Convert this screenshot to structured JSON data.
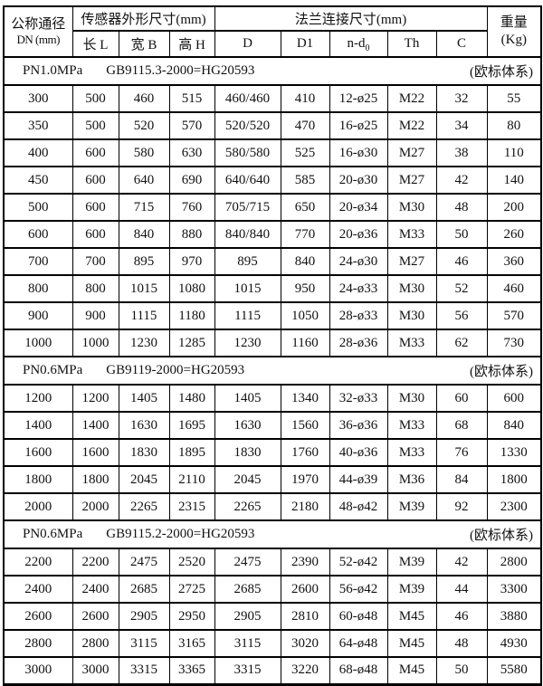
{
  "header": {
    "dn_title": "公称通径",
    "dn_sub": "DN (mm)",
    "sensor_group": "传感器外形尺寸(mm)",
    "flange_group": "法兰连接尺寸(mm)",
    "weight_line1": "重量",
    "weight_line2": "(Kg)",
    "sub_cols": [
      "长 L",
      "宽 B",
      "高 H",
      "D",
      "D1",
      "",
      "Th",
      "C"
    ],
    "nd_main": "n-d",
    "nd_sub": "0"
  },
  "columns_semantic": [
    "DN",
    "L",
    "B",
    "H",
    "D",
    "D1",
    "n-d0",
    "Th",
    "C",
    "Weight"
  ],
  "sections": [
    {
      "pressure": "PN1.0MPa",
      "standard": "GB9115.3-2000=HG20593",
      "note": "(欧标体系)",
      "rows": [
        [
          "300",
          "500",
          "460",
          "515",
          "460/460",
          "410",
          "12-ø25",
          "M22",
          "32",
          "55"
        ],
        [
          "350",
          "500",
          "520",
          "570",
          "520/520",
          "470",
          "16-ø25",
          "M22",
          "34",
          "80"
        ],
        [
          "400",
          "600",
          "580",
          "630",
          "580/580",
          "525",
          "16-ø30",
          "M27",
          "38",
          "110"
        ],
        [
          "450",
          "600",
          "640",
          "690",
          "640/640",
          "585",
          "20-ø30",
          "M27",
          "42",
          "140"
        ],
        [
          "500",
          "600",
          "715",
          "760",
          "705/715",
          "650",
          "20-ø34",
          "M30",
          "48",
          "200"
        ],
        [
          "600",
          "600",
          "840",
          "880",
          "840/840",
          "770",
          "20-ø36",
          "M33",
          "50",
          "260"
        ],
        [
          "700",
          "700",
          "895",
          "970",
          "895",
          "840",
          "24-ø30",
          "M27",
          "46",
          "360"
        ],
        [
          "800",
          "800",
          "1015",
          "1080",
          "1015",
          "950",
          "24-ø33",
          "M30",
          "52",
          "460"
        ],
        [
          "900",
          "900",
          "1115",
          "1180",
          "1115",
          "1050",
          "28-ø33",
          "M30",
          "56",
          "570"
        ],
        [
          "1000",
          "1000",
          "1230",
          "1285",
          "1230",
          "1160",
          "28-ø36",
          "M33",
          "62",
          "730"
        ]
      ]
    },
    {
      "pressure": "PN0.6MPa",
      "standard": "GB9119-2000=HG20593",
      "note": "(欧标体系)",
      "rows": [
        [
          "1200",
          "1200",
          "1405",
          "1480",
          "1405",
          "1340",
          "32-ø33",
          "M30",
          "60",
          "600"
        ],
        [
          "1400",
          "1400",
          "1630",
          "1695",
          "1630",
          "1560",
          "36-ø36",
          "M33",
          "68",
          "840"
        ],
        [
          "1600",
          "1600",
          "1830",
          "1895",
          "1830",
          "1760",
          "40-ø36",
          "M33",
          "76",
          "1330"
        ],
        [
          "1800",
          "1800",
          "2045",
          "2110",
          "2045",
          "1970",
          "44-ø39",
          "M36",
          "84",
          "1800"
        ],
        [
          "2000",
          "2000",
          "2265",
          "2315",
          "2265",
          "2180",
          "48-ø42",
          "M39",
          "92",
          "2300"
        ]
      ]
    },
    {
      "pressure": "PN0.6MPa",
      "standard": "GB9115.2-2000=HG20593",
      "note": "(欧标体系)",
      "rows": [
        [
          "2200",
          "2200",
          "2475",
          "2520",
          "2475",
          "2390",
          "52-ø42",
          "M39",
          "42",
          "2800"
        ],
        [
          "2400",
          "2400",
          "2685",
          "2725",
          "2685",
          "2600",
          "56-ø42",
          "M39",
          "44",
          "3300"
        ],
        [
          "2600",
          "2600",
          "2905",
          "2950",
          "2905",
          "2810",
          "60-ø48",
          "M45",
          "46",
          "3880"
        ],
        [
          "2800",
          "2800",
          "3115",
          "3165",
          "3115",
          "3020",
          "64-ø48",
          "M45",
          "48",
          "4930"
        ],
        [
          "3000",
          "3000",
          "3315",
          "3365",
          "3315",
          "3220",
          "68-ø48",
          "M45",
          "50",
          "5580"
        ]
      ]
    }
  ]
}
